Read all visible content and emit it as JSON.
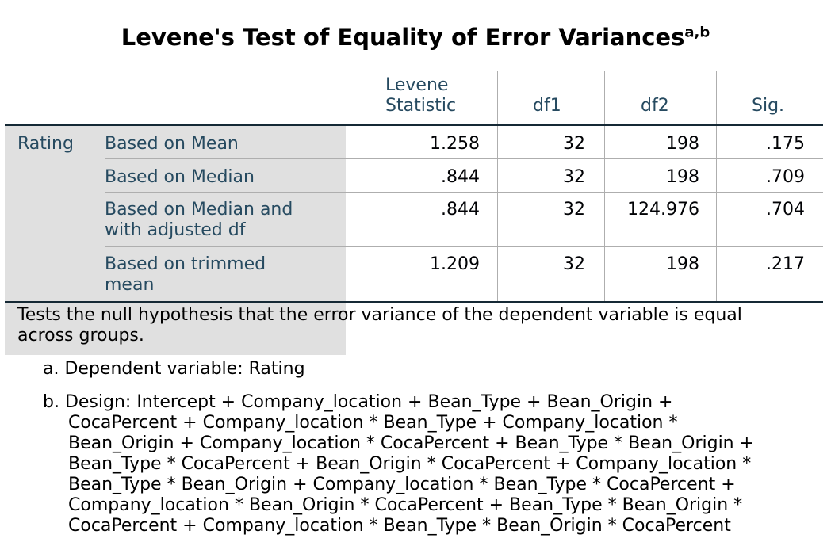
{
  "title": "Levene's Test of Equality of Error Variances",
  "title_superscript": "a,b",
  "columns": {
    "levene_line1": "Levene",
    "levene_line2": "Statistic",
    "df1": "df1",
    "df2": "df2",
    "sig": "Sig."
  },
  "group_label": "Rating",
  "rows": [
    {
      "label_line1": "Based on Mean",
      "label_line2": "",
      "levene": "1.258",
      "df1": "32",
      "df2": "198",
      "sig": ".175"
    },
    {
      "label_line1": "Based on Median",
      "label_line2": "",
      "levene": ".844",
      "df1": "32",
      "df2": "198",
      "sig": ".709"
    },
    {
      "label_line1": "Based on Median and",
      "label_line2": "with adjusted df",
      "levene": ".844",
      "df1": "32",
      "df2": "124.976",
      "sig": ".704"
    },
    {
      "label_line1": "Based on trimmed",
      "label_line2": "mean",
      "levene": "1.209",
      "df1": "32",
      "df2": "198",
      "sig": ".217"
    }
  ],
  "notes": {
    "hypothesis_line1": "Tests the null hypothesis that the error variance of the dependent variable is equal",
    "hypothesis_line2": "across groups.",
    "a": "a. Dependent variable: Rating",
    "b_lines": [
      "b. Design: Intercept + Company_location + Bean_Type + Bean_Origin +",
      "CocaPercent + Company_location * Bean_Type + Company_location *",
      "Bean_Origin + Company_location * CocaPercent + Bean_Type * Bean_Origin +",
      "Bean_Type * CocaPercent + Bean_Origin * CocaPercent + Company_location *",
      "Bean_Type * Bean_Origin + Company_location * Bean_Type * CocaPercent +",
      "Company_location * Bean_Origin * CocaPercent + Bean_Type * Bean_Origin *",
      "CocaPercent + Company_location * Bean_Type * Bean_Origin * CocaPercent"
    ]
  },
  "colors": {
    "header_text": "#264a60",
    "label_shade": "#e0e0e0",
    "rule_dark": "#152935",
    "rule_light": "#aeaeae"
  }
}
